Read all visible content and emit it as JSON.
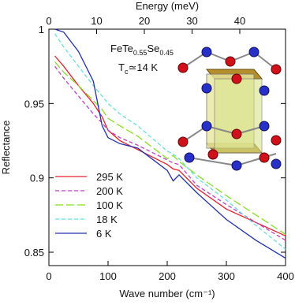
{
  "chart_data": {
    "type": "line",
    "xlabel": "Wave number (cm⁻¹)",
    "ylabel": "Reflectance",
    "top_xlabel": "Energy (meV)",
    "xlim": [
      0,
      400
    ],
    "xticks": [
      0,
      100,
      200,
      300,
      400
    ],
    "top_xlim": [
      0,
      49.59
    ],
    "top_xticks": [
      0,
      10,
      20,
      30,
      40
    ],
    "ylim": [
      0.841,
      1.0
    ],
    "yticks": [
      0.85,
      0.9,
      0.95,
      1
    ],
    "annotations": [
      [
        "FeTe",
        "0.55",
        "Se",
        "0.45"
      ],
      [
        "T",
        "c",
        "≃14 K"
      ]
    ],
    "x": [
      10,
      25,
      50,
      75,
      90,
      100,
      120,
      150,
      200,
      210,
      220,
      250,
      300,
      350,
      400
    ],
    "series": [
      {
        "name": "295 K",
        "color": "#e8202a",
        "linestyle": "solid",
        "values": [
          0.982,
          0.975,
          0.962,
          0.95,
          0.941,
          0.932,
          0.925,
          0.919,
          0.909,
          0.906,
          0.905,
          0.893,
          0.879,
          0.87,
          0.861
        ]
      },
      {
        "name": "200 K",
        "color": "#c040c8",
        "linestyle": "dashed",
        "values": [
          0.975,
          0.967,
          0.955,
          0.943,
          0.937,
          0.932,
          0.927,
          0.922,
          0.912,
          0.91,
          0.909,
          0.895,
          0.882,
          0.87,
          0.858
        ]
      },
      {
        "name": "100 K",
        "color": "#88dd22",
        "linestyle": "longdash",
        "values": [
          0.978,
          0.971,
          0.962,
          0.952,
          0.946,
          0.94,
          0.935,
          0.928,
          0.913,
          0.915,
          0.911,
          0.902,
          0.888,
          0.875,
          0.862
        ]
      },
      {
        "name": "18 K",
        "color": "#66e0dd",
        "linestyle": "dashed",
        "values": [
          0.997,
          0.988,
          0.975,
          0.962,
          0.955,
          0.95,
          0.943,
          0.935,
          0.918,
          0.916,
          0.913,
          0.9,
          0.885,
          0.868,
          0.852
        ]
      },
      {
        "name": "6 K",
        "color": "#2030b0",
        "linestyle": "solid",
        "values": [
          1.0,
          0.998,
          0.985,
          0.965,
          0.935,
          0.927,
          0.923,
          0.92,
          0.905,
          0.898,
          0.902,
          0.89,
          0.872,
          0.858,
          0.846
        ]
      }
    ]
  }
}
